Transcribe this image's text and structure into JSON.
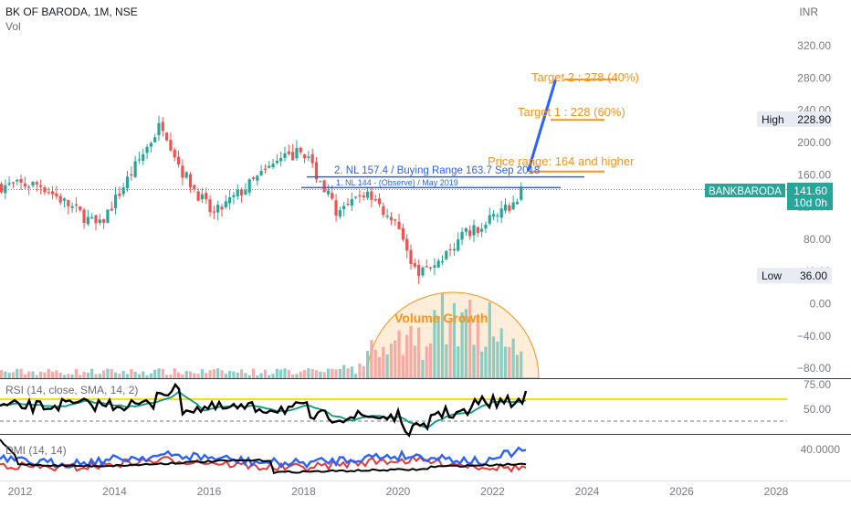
{
  "header": {
    "symbol_line": "BK OF BARODA, 1M, NSE",
    "volume_label": "Vol",
    "currency": "INR"
  },
  "price_axis": {
    "ticks": [
      "320.00",
      "280.00",
      "240.00",
      "200.00",
      "160.00",
      "120.00",
      "80.00",
      "40.00",
      "0.00",
      "−40.00",
      "−80.00"
    ]
  },
  "rsi_axis": {
    "ticks": [
      "75.00",
      "50.00"
    ]
  },
  "dmi_axis": {
    "ticks": [
      "40.0000"
    ]
  },
  "time_axis": {
    "ticks": [
      "2012",
      "2014",
      "2016",
      "2018",
      "2020",
      "2022",
      "2024",
      "2026",
      "2028"
    ]
  },
  "labels": {
    "high_label": "High",
    "high_value": "228.90",
    "low_label": "Low",
    "low_value": "36.00",
    "symbol_tag": "BANKBARODA",
    "last_price": "141.60",
    "countdown": "10d 0h"
  },
  "annotations": {
    "target2": "Target 2 : 278 (40%)",
    "target1": "Target 1 :  228 (60%)",
    "price_range": "Price range: 164 and higher",
    "nl2": "2. NL 157.4 / Buying Range 163.7 Sep 2018",
    "nl1": "1. NL  144 - (Observe) / May 2019",
    "volume_growth": "Volume Growth"
  },
  "indicators": {
    "rsi_label": "RSI (14, close, SMA, 14, 2)",
    "dmi_label": "DMI (14, 14)"
  },
  "colors": {
    "up": "#26a69a",
    "down": "#ef5350",
    "target": "#f7931a",
    "trend": "#2962ff",
    "rsi_band": "#f5e20b",
    "rsi_sma": "#089981"
  },
  "chart_data": {
    "type": "candlestick",
    "interval": "1M",
    "x_range": [
      "2011-01",
      "2028-06"
    ],
    "y_range": [
      -80,
      360
    ],
    "last_price": 141.6,
    "high": 228.9,
    "low": 36.0,
    "levels": [
      {
        "label": "Target 2 : 278 (40%)",
        "value": 278
      },
      {
        "label": "Target 1 :  228 (60%)",
        "value": 228
      },
      {
        "label": "Price range: 164 and higher",
        "value": 164
      },
      {
        "label": "2. NL 157.4 / Buying Range 163.7 Sep 2018",
        "value": 157.4
      },
      {
        "label": "1. NL  144 - (Observe) / May 2019",
        "value": 144
      }
    ],
    "projection": [
      {
        "date": "2022-10",
        "price": 164
      },
      {
        "date": "2023-05",
        "price": 278
      }
    ],
    "price_path": [
      {
        "date": "2011-01",
        "price": 145
      },
      {
        "date": "2012-06",
        "price": 148
      },
      {
        "date": "2013-09",
        "price": 95
      },
      {
        "date": "2015-01",
        "price": 225
      },
      {
        "date": "2015-06",
        "price": 165
      },
      {
        "date": "2016-02",
        "price": 110
      },
      {
        "date": "2017-06",
        "price": 175
      },
      {
        "date": "2018-01",
        "price": 190
      },
      {
        "date": "2018-10",
        "price": 110
      },
      {
        "date": "2019-05",
        "price": 140
      },
      {
        "date": "2019-12",
        "price": 100
      },
      {
        "date": "2020-05",
        "price": 40
      },
      {
        "date": "2020-11",
        "price": 50
      },
      {
        "date": "2021-06",
        "price": 85
      },
      {
        "date": "2022-03",
        "price": 110
      },
      {
        "date": "2022-09",
        "price": 141.6
      }
    ],
    "rsi_levels": [
      75,
      50
    ],
    "dmi_level": 40
  }
}
